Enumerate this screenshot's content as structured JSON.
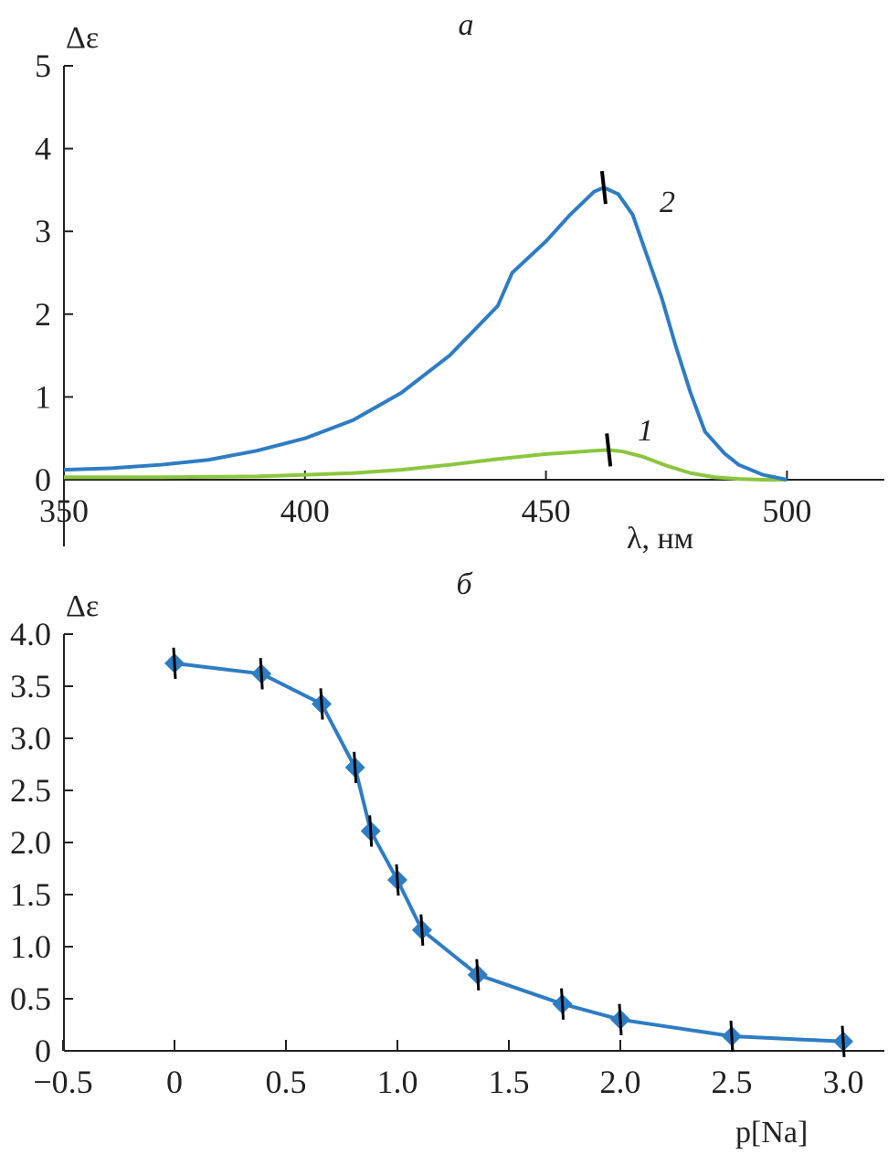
{
  "chart_data": [
    {
      "type": "line",
      "panel_label": "a",
      "ylabel": "Δε",
      "xlabel": "λ, нм",
      "xlim": [
        350,
        520
      ],
      "ylim": [
        0,
        5
      ],
      "xticks": [
        350,
        400,
        450,
        500
      ],
      "yticks": [
        0,
        1,
        2,
        3,
        4,
        5
      ],
      "grid": false,
      "series": [
        {
          "name": "1",
          "color": "#8cc63f",
          "marker_x": 463,
          "x": [
            350,
            370,
            390,
            400,
            410,
            420,
            430,
            440,
            450,
            455,
            460,
            463,
            466,
            470,
            475,
            480,
            485,
            490,
            495,
            500
          ],
          "y": [
            0.03,
            0.03,
            0.04,
            0.06,
            0.08,
            0.12,
            0.18,
            0.25,
            0.31,
            0.33,
            0.35,
            0.36,
            0.34,
            0.28,
            0.17,
            0.08,
            0.03,
            0.01,
            0.0,
            0.0
          ]
        },
        {
          "name": "2",
          "color": "#2e7cc4",
          "marker_x": 462,
          "x": [
            350,
            360,
            370,
            380,
            390,
            400,
            410,
            420,
            430,
            440,
            443,
            450,
            455,
            460,
            462,
            465,
            468,
            471,
            474,
            477,
            480,
            483,
            487,
            490,
            495,
            500
          ],
          "y": [
            0.12,
            0.14,
            0.18,
            0.24,
            0.35,
            0.5,
            0.72,
            1.05,
            1.5,
            2.1,
            2.5,
            2.88,
            3.2,
            3.48,
            3.53,
            3.45,
            3.2,
            2.7,
            2.2,
            1.6,
            1.05,
            0.58,
            0.32,
            0.18,
            0.06,
            0.0
          ]
        }
      ]
    },
    {
      "type": "line",
      "panel_label": "б",
      "ylabel": "Δε",
      "xlabel": "p[Na]",
      "xlim": [
        -0.5,
        3.2
      ],
      "ylim": [
        0,
        4.0
      ],
      "xticks": [
        "−0.5",
        "0",
        "0.5",
        "1.0",
        "1.5",
        "2.0",
        "2.5",
        "3.0"
      ],
      "yticks": [
        "0",
        "0.5",
        "1.0",
        "1.5",
        "2.0",
        "2.5",
        "3.0",
        "3.5",
        "4.0"
      ],
      "grid": false,
      "marker": "diamond",
      "color": "#2e7cc4",
      "error_bar": 0.15,
      "x": [
        0,
        0.39,
        0.66,
        0.81,
        0.88,
        1.0,
        1.11,
        1.36,
        1.74,
        2.0,
        2.5,
        3.0
      ],
      "y": [
        3.72,
        3.62,
        3.33,
        2.72,
        2.11,
        1.64,
        1.16,
        0.73,
        0.45,
        0.3,
        0.14,
        0.09
      ]
    }
  ]
}
